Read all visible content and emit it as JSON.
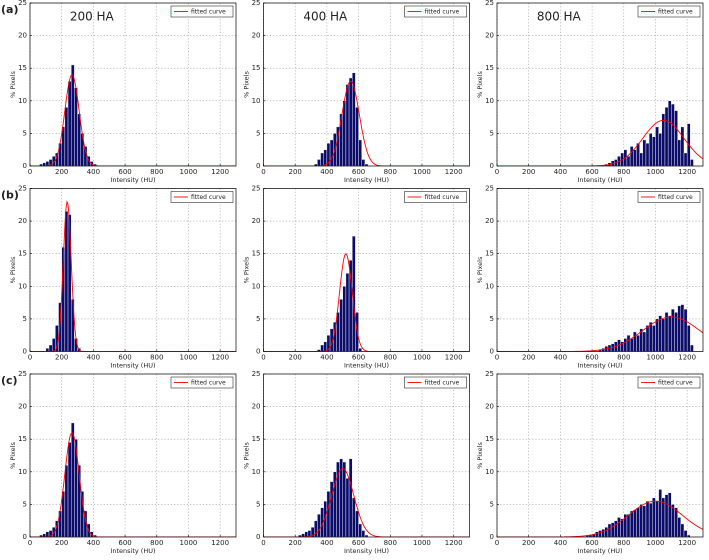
{
  "panel_labels": [
    "(a)",
    "(b)",
    "(c)"
  ],
  "chart_data": [
    {
      "type": "histogram",
      "title": "200 HA",
      "xlabel": "Intensity (HU)",
      "ylabel": "% Pixels",
      "xlim": [
        0,
        1300
      ],
      "xticks": [
        0,
        200,
        400,
        600,
        800,
        1000,
        1200
      ],
      "ylim": [
        0,
        25
      ],
      "yticks": [
        0,
        5,
        10,
        15,
        20,
        25
      ],
      "grid": true,
      "color": "#0c0c6a",
      "legend": "upper right",
      "bins": [
        60,
        80,
        100,
        120,
        140,
        160,
        180,
        200,
        220,
        240,
        260,
        280,
        300,
        320,
        340,
        360,
        380,
        400,
        420
      ],
      "values": [
        0.3,
        0.5,
        0.7,
        1,
        1.5,
        2,
        3.5,
        6,
        9,
        13,
        15.5,
        12,
        8,
        5,
        3,
        1.5,
        0.7,
        0.3
      ],
      "curve": {
        "name": "fitted curve",
        "color": "#ff0000",
        "peak": 14,
        "mean": 265,
        "sd": 45
      }
    },
    {
      "type": "histogram",
      "title": "400 HA",
      "xlabel": "Intensity (HU)",
      "ylabel": "% Pixels",
      "xlim": [
        0,
        1300
      ],
      "xticks": [
        0,
        200,
        400,
        600,
        800,
        1000,
        1200
      ],
      "ylim": [
        0,
        25
      ],
      "yticks": [
        0,
        5,
        10,
        15,
        20,
        25
      ],
      "grid": true,
      "color": "#0c0c6a",
      "legend": "upper right",
      "bins": [
        320,
        340,
        360,
        380,
        400,
        420,
        440,
        460,
        480,
        500,
        520,
        540,
        560,
        580,
        600,
        620,
        640,
        660
      ],
      "values": [
        0.3,
        1,
        2,
        2.5,
        3.5,
        4,
        5,
        6,
        8,
        10,
        12.5,
        13.5,
        14.3,
        9,
        4,
        1,
        0.3
      ],
      "curve": {
        "name": "fitted curve",
        "color": "#ff0000",
        "peak": 13,
        "mean": 550,
        "sd": 55
      }
    },
    {
      "type": "histogram",
      "title": "800 HA",
      "xlabel": "Intensity (HU)",
      "ylabel": "% Pixels",
      "xlim": [
        0,
        1300
      ],
      "xticks": [
        0,
        200,
        400,
        600,
        800,
        1000,
        1200
      ],
      "ylim": [
        0,
        25
      ],
      "yticks": [
        0,
        5,
        10,
        15,
        20,
        25
      ],
      "grid": true,
      "color": "#0c0c6a",
      "legend": "upper right",
      "bins": [
        680,
        700,
        720,
        740,
        760,
        780,
        800,
        820,
        840,
        860,
        880,
        900,
        920,
        940,
        960,
        980,
        1000,
        1020,
        1040,
        1060,
        1080,
        1100,
        1120,
        1140,
        1160,
        1180,
        1200,
        1220,
        1240
      ],
      "values": [
        0.3,
        0.5,
        0.8,
        1,
        1.5,
        2,
        2.5,
        1.5,
        3,
        2.5,
        3.5,
        2,
        4,
        3.5,
        5,
        4.5,
        6,
        5,
        8,
        9,
        10,
        9.5,
        8.5,
        4,
        6,
        2,
        6.5,
        1
      ],
      "curve": {
        "name": "fitted curve",
        "color": "#ff0000",
        "peak": 7,
        "mean": 1050,
        "sd": 130
      }
    },
    {
      "type": "histogram",
      "xlabel": "Intensity (HU)",
      "ylabel": "% Pixels",
      "xlim": [
        0,
        1300
      ],
      "xticks": [
        0,
        200,
        400,
        600,
        800,
        1000,
        1200
      ],
      "ylim": [
        0,
        25
      ],
      "yticks": [
        0,
        5,
        10,
        15,
        20,
        25
      ],
      "grid": true,
      "color": "#0c0c6a",
      "legend": "upper right",
      "bins": [
        100,
        120,
        140,
        160,
        180,
        200,
        220,
        240,
        260,
        280,
        300,
        320
      ],
      "values": [
        0.5,
        1,
        2,
        4,
        7.5,
        16,
        21.5,
        21,
        8,
        2,
        0.5
      ],
      "curve": {
        "name": "fitted curve",
        "color": "#ff0000",
        "peak": 23,
        "mean": 235,
        "sd": 25
      }
    },
    {
      "type": "histogram",
      "xlabel": "Intensity (HU)",
      "ylabel": "% Pixels",
      "xlim": [
        0,
        1300
      ],
      "xticks": [
        0,
        200,
        400,
        600,
        800,
        1000,
        1200
      ],
      "ylim": [
        0,
        25
      ],
      "yticks": [
        0,
        5,
        10,
        15,
        20,
        25
      ],
      "grid": true,
      "color": "#0c0c6a",
      "legend": "upper right",
      "bins": [
        340,
        360,
        380,
        400,
        420,
        440,
        460,
        480,
        500,
        520,
        540,
        560,
        580,
        600,
        620
      ],
      "values": [
        0.3,
        1,
        1.5,
        2.5,
        3.5,
        4.5,
        6,
        8,
        10,
        12,
        14,
        17.7,
        6,
        0.5
      ],
      "curve": {
        "name": "fitted curve",
        "color": "#ff0000",
        "peak": 15,
        "mean": 520,
        "sd": 40
      }
    },
    {
      "type": "histogram",
      "xlabel": "Intensity (HU)",
      "ylabel": "% Pixels",
      "xlim": [
        0,
        1300
      ],
      "xticks": [
        0,
        200,
        400,
        600,
        800,
        1000,
        1200
      ],
      "ylim": [
        0,
        25
      ],
      "yticks": [
        0,
        5,
        10,
        15,
        20,
        25
      ],
      "grid": true,
      "color": "#0c0c6a",
      "legend": "upper right",
      "bins": [
        640,
        660,
        680,
        700,
        720,
        740,
        760,
        780,
        800,
        820,
        840,
        860,
        880,
        900,
        920,
        940,
        960,
        980,
        1000,
        1020,
        1040,
        1060,
        1080,
        1100,
        1120,
        1140,
        1160,
        1180,
        1200,
        1220,
        1240
      ],
      "values": [
        0.3,
        0.5,
        0.8,
        1,
        1.2,
        1.5,
        1.8,
        1.5,
        2,
        2.5,
        2,
        3,
        2.5,
        3.5,
        3,
        4,
        4.5,
        4,
        5,
        5.5,
        5,
        6,
        5.5,
        6.5,
        6,
        7,
        7.2,
        6.5,
        4,
        1
      ],
      "curve": {
        "name": "fitted curve",
        "color": "#ff0000",
        "peak": 5.3,
        "mean": 1100,
        "sd": 180
      }
    },
    {
      "type": "histogram",
      "xlabel": "Intensity (HU)",
      "ylabel": "% Pixels",
      "xlim": [
        0,
        1300
      ],
      "xticks": [
        0,
        200,
        400,
        600,
        800,
        1000,
        1200
      ],
      "ylim": [
        0,
        25
      ],
      "yticks": [
        0,
        5,
        10,
        15,
        20,
        25
      ],
      "grid": true,
      "color": "#0c0c6a",
      "legend": "upper right",
      "bins": [
        60,
        80,
        100,
        120,
        140,
        160,
        180,
        200,
        220,
        240,
        260,
        280,
        300,
        320,
        340,
        360,
        380,
        400,
        420
      ],
      "values": [
        0.3,
        0.5,
        0.8,
        1,
        1.5,
        2.5,
        4,
        7,
        11,
        14.5,
        17.5,
        15,
        11,
        7,
        4,
        2,
        0.8,
        0.3
      ],
      "curve": {
        "name": "fitted curve",
        "color": "#ff0000",
        "peak": 16,
        "mean": 265,
        "sd": 45
      }
    },
    {
      "type": "histogram",
      "xlabel": "Intensity (HU)",
      "ylabel": "% Pixels",
      "xlim": [
        0,
        1300
      ],
      "xticks": [
        0,
        200,
        400,
        600,
        800,
        1000,
        1200
      ],
      "ylim": [
        0,
        25
      ],
      "yticks": [
        0,
        5,
        10,
        15,
        20,
        25
      ],
      "grid": true,
      "color": "#0c0c6a",
      "legend": "upper right",
      "bins": [
        220,
        240,
        260,
        280,
        300,
        320,
        340,
        360,
        380,
        400,
        420,
        440,
        460,
        480,
        500,
        520,
        540,
        560,
        580,
        600,
        620,
        640,
        660
      ],
      "values": [
        0.3,
        0.5,
        0.8,
        1,
        1.5,
        2.5,
        3.5,
        4.5,
        5.5,
        7,
        8.5,
        10,
        11.5,
        12,
        11.5,
        9,
        12,
        6,
        4,
        2,
        1,
        0.3
      ],
      "curve": {
        "name": "fitted curve",
        "color": "#ff0000",
        "peak": 10.5,
        "mean": 500,
        "sd": 70
      }
    },
    {
      "type": "histogram",
      "xlabel": "Intensity (HU)",
      "ylabel": "% Pixels",
      "xlim": [
        0,
        1300
      ],
      "xticks": [
        0,
        200,
        400,
        600,
        800,
        1000,
        1200
      ],
      "ylim": [
        0,
        25
      ],
      "yticks": [
        0,
        5,
        10,
        15,
        20,
        25
      ],
      "grid": true,
      "color": "#0c0c6a",
      "legend": "upper right",
      "bins": [
        560,
        580,
        600,
        620,
        640,
        660,
        680,
        700,
        720,
        740,
        760,
        780,
        800,
        820,
        840,
        860,
        880,
        900,
        920,
        940,
        960,
        980,
        1000,
        1020,
        1040,
        1060,
        1080,
        1100,
        1120,
        1140,
        1160,
        1180,
        1200,
        1220
      ],
      "values": [
        0.3,
        0.3,
        0.5,
        0.8,
        1,
        1.2,
        1.5,
        2,
        2.2,
        2.5,
        3,
        2.8,
        3.5,
        3.5,
        4,
        4.2,
        4.5,
        5,
        4.8,
        5.5,
        5.2,
        6,
        5.5,
        7.3,
        6,
        6.5,
        6.8,
        5,
        4.5,
        3,
        2,
        1,
        0.3
      ],
      "curve": {
        "name": "fitted curve",
        "color": "#ff0000",
        "peak": 5.5,
        "mean": 1000,
        "sd": 170
      }
    }
  ]
}
